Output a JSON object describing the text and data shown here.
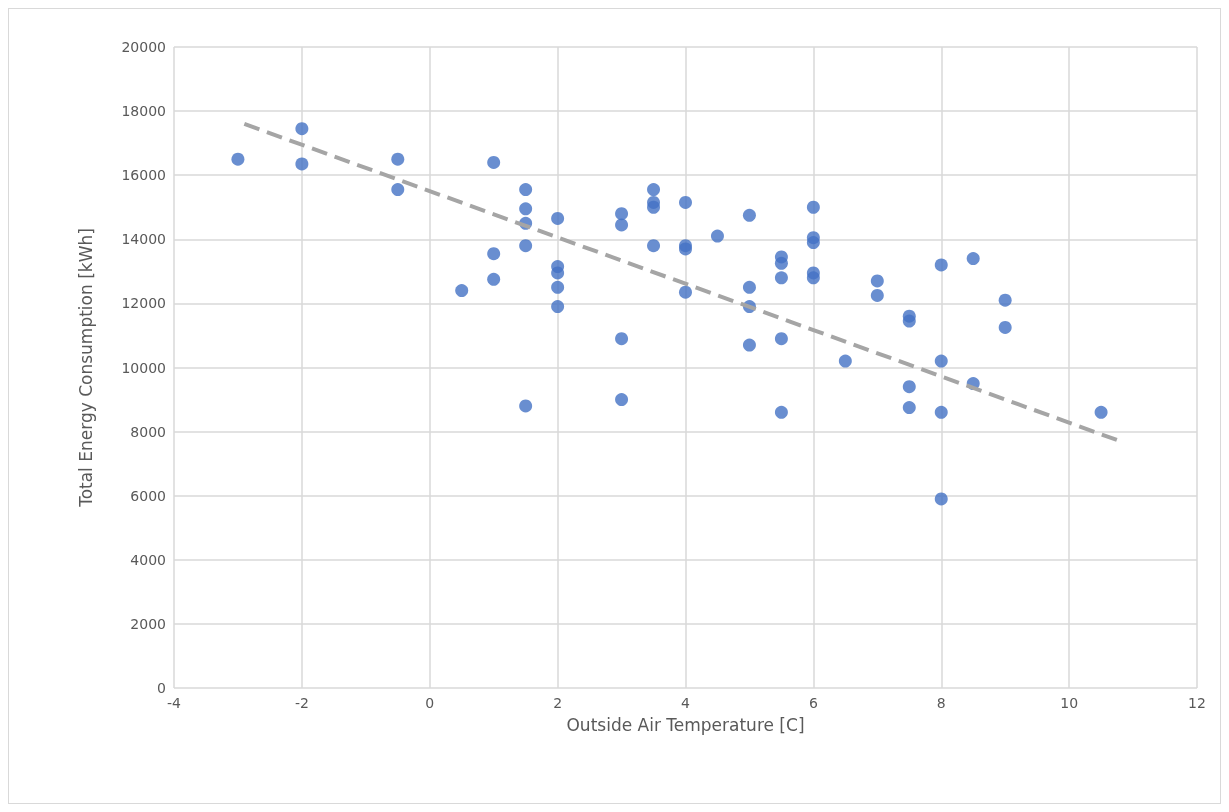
{
  "chart_data": {
    "type": "scatter",
    "xlabel": "Outside Air Temperature [C]",
    "ylabel": "Total Energy Consumption [kWh]",
    "xlim": [
      -4,
      12
    ],
    "xticks": [
      -4,
      -2,
      0,
      2,
      4,
      6,
      8,
      10,
      12
    ],
    "ylim": [
      0,
      20000
    ],
    "yticks": [
      0,
      2000,
      4000,
      6000,
      8000,
      10000,
      12000,
      14000,
      16000,
      18000,
      20000
    ],
    "grid": true,
    "marker": "circle",
    "series": [
      {
        "color": "#4472c4",
        "x": [
          -3,
          -2,
          -2,
          -0.5,
          -0.5,
          0.5,
          1,
          1,
          1,
          1.5,
          1.5,
          1.5,
          1.5,
          1.5,
          2,
          2,
          2,
          2,
          2,
          3,
          3,
          3,
          3,
          3.5,
          3.5,
          3.5,
          3.5,
          4,
          4,
          4,
          4,
          4.5,
          5,
          5,
          5,
          5,
          5.5,
          5.5,
          5.5,
          5.5,
          5.5,
          6,
          6,
          6,
          6,
          6,
          6.5,
          7,
          7,
          7.5,
          7.5,
          7.5,
          7.5,
          8,
          8,
          8,
          8,
          8.5,
          8.5,
          9,
          9,
          10.5
        ],
        "values": [
          16500,
          17450,
          16350,
          16500,
          15550,
          12400,
          16400,
          13550,
          12750,
          15550,
          14950,
          14500,
          13800,
          8800,
          14650,
          13150,
          12950,
          12500,
          11900,
          14800,
          14450,
          10900,
          9000,
          15550,
          15150,
          15000,
          13800,
          15150,
          13800,
          13700,
          12350,
          14100,
          14750,
          12500,
          11900,
          10700,
          13450,
          13250,
          12800,
          10900,
          8600,
          15000,
          14050,
          13900,
          12950,
          12800,
          10200,
          12700,
          12250,
          11600,
          11450,
          9400,
          8750,
          13200,
          10200,
          8600,
          5900,
          13400,
          9500,
          12100,
          11250,
          8600
        ]
      },
      {
        "type": "line",
        "color": "#a5a5a5",
        "line_style": "dashed",
        "marker": "none",
        "x": [
          -2.9,
          10.8
        ],
        "values": [
          17600,
          7700
        ]
      }
    ]
  }
}
